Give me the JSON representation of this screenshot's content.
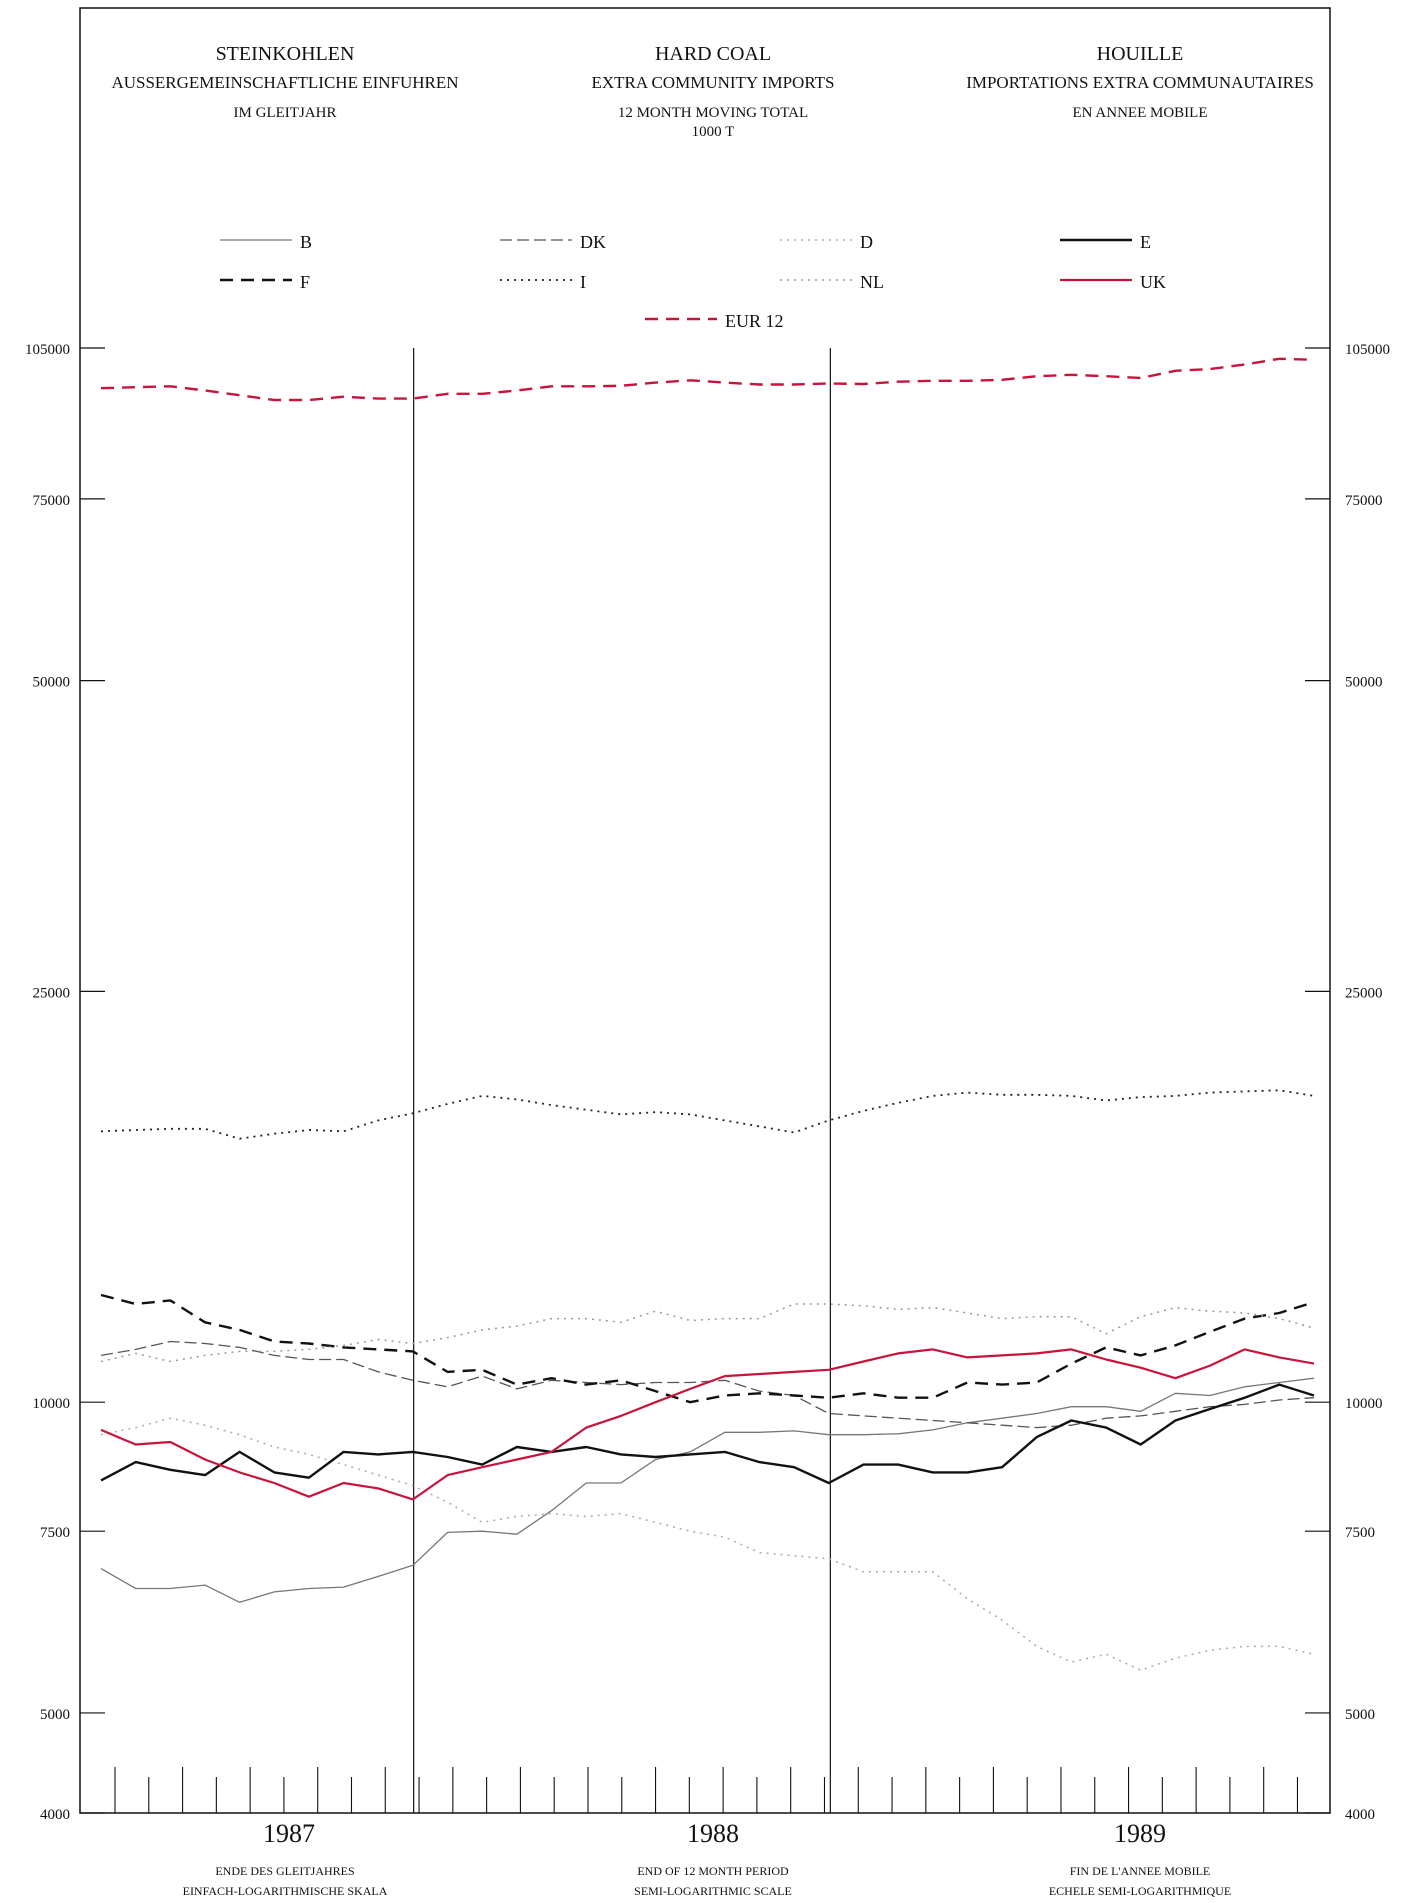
{
  "titles": [
    {
      "lines": [
        "STEINKOHLEN",
        "AUSSERGEMEINSCHAFTLICHE EINFUHREN",
        "IM GLEITJAHR"
      ]
    },
    {
      "lines": [
        "HARD COAL",
        "EXTRA COMMUNITY IMPORTS",
        "12 MONTH MOVING TOTAL",
        "1000 T"
      ]
    },
    {
      "lines": [
        "HOUILLE",
        "IMPORTATIONS EXTRA COMMUNAUTAIRES",
        "EN ANNEE MOBILE"
      ]
    }
  ],
  "footers": [
    {
      "lines": [
        "ENDE DES GLEITJAHRES",
        "EINFACH-LOGARITHMISCHE SKALA"
      ]
    },
    {
      "lines": [
        "END OF 12 MONTH PERIOD",
        "SEMI-LOGARITHMIC SCALE"
      ]
    },
    {
      "lines": [
        "FIN DE L'ANNEE MOBILE",
        "ECHELE SEMI-LOGARITHMIQUE"
      ]
    }
  ],
  "chart_data": {
    "type": "line",
    "y_scale": "log",
    "ylim": [
      4000,
      105000
    ],
    "y_ticks": [
      4000,
      5000,
      7500,
      10000,
      25000,
      50000,
      75000,
      105000
    ],
    "y_tick_labels": [
      "4000",
      "5000",
      "7500",
      "10000",
      "25000",
      "50000",
      "75000",
      "105000"
    ],
    "years": [
      "1987",
      "1988",
      "1989"
    ],
    "months_per_year": 12,
    "x_note": "monthly points, Jan 1987 to Dec 1989",
    "series": [
      {
        "name": "B",
        "color": "#777777",
        "dash": "solid",
        "width": 1.3,
        "values": [
          6900,
          6600,
          6600,
          6650,
          6400,
          6550,
          6600,
          6620,
          6780,
          6950,
          7480,
          7500,
          7450,
          7850,
          8350,
          8350,
          8800,
          8950,
          9350,
          9350,
          9380,
          9300,
          9300,
          9320,
          9400,
          9550,
          9650,
          9750,
          9900,
          9900,
          9800,
          10200,
          10150,
          10350,
          10450,
          10550
        ]
      },
      {
        "name": "DK",
        "color": "#555555",
        "dash": "long-dash",
        "width": 1.3,
        "values": [
          11100,
          11250,
          11450,
          11400,
          11300,
          11100,
          11000,
          11000,
          10700,
          10500,
          10350,
          10600,
          10300,
          10500,
          10450,
          10400,
          10450,
          10450,
          10500,
          10250,
          10150,
          9750,
          9700,
          9650,
          9600,
          9550,
          9500,
          9450,
          9500,
          9650,
          9700,
          9800,
          9900,
          9950,
          10050,
          10100
        ]
      },
      {
        "name": "D",
        "color": "#aaaaaa",
        "dash": "dot",
        "width": 1.5,
        "values": [
          9300,
          9450,
          9650,
          9500,
          9300,
          9050,
          8900,
          8700,
          8500,
          8300,
          8000,
          7650,
          7750,
          7800,
          7750,
          7800,
          7650,
          7500,
          7400,
          7150,
          7100,
          7050,
          6850,
          6850,
          6850,
          6450,
          6150,
          5800,
          5600,
          5700,
          5500,
          5650,
          5750,
          5800,
          5800,
          5700
        ]
      },
      {
        "name": "E",
        "color": "#111111",
        "dash": "solid",
        "width": 2.4,
        "values": [
          8400,
          8750,
          8600,
          8500,
          8950,
          8550,
          8450,
          8950,
          8900,
          8950,
          8850,
          8700,
          9050,
          8950,
          9050,
          8900,
          8850,
          8900,
          8950,
          8750,
          8650,
          8350,
          8700,
          8700,
          8550,
          8550,
          8650,
          9250,
          9600,
          9450,
          9100,
          9600,
          9850,
          10100,
          10400,
          10150
        ]
      },
      {
        "name": "F",
        "color": "#111111",
        "dash": "dash",
        "width": 2.4,
        "values": [
          12700,
          12450,
          12550,
          11950,
          11750,
          11450,
          11400,
          11300,
          11250,
          11200,
          10700,
          10750,
          10400,
          10550,
          10400,
          10500,
          10250,
          10000,
          10150,
          10200,
          10150,
          10100,
          10200,
          10100,
          10100,
          10450,
          10400,
          10450,
          10900,
          11300,
          11100,
          11350,
          11700,
          12050,
          12200,
          12500
        ]
      },
      {
        "name": "I",
        "color": "#222222",
        "dash": "dot",
        "width": 1.8,
        "values": [
          18300,
          18350,
          18400,
          18400,
          18000,
          18200,
          18350,
          18300,
          18750,
          19050,
          19450,
          19800,
          19650,
          19400,
          19200,
          19000,
          19100,
          19000,
          18750,
          18500,
          18250,
          18750,
          19150,
          19500,
          19800,
          19950,
          19850,
          19850,
          19800,
          19600,
          19750,
          19800,
          19950,
          20000,
          20050,
          19800
        ]
      },
      {
        "name": "NL",
        "color": "#999999",
        "dash": "dot",
        "width": 1.5,
        "values": [
          10950,
          11150,
          10950,
          11100,
          11200,
          11200,
          11250,
          11350,
          11500,
          11400,
          11550,
          11750,
          11850,
          12050,
          12050,
          11950,
          12250,
          12000,
          12050,
          12050,
          12450,
          12450,
          12400,
          12300,
          12350,
          12200,
          12050,
          12100,
          12100,
          11650,
          12100,
          12350,
          12250,
          12200,
          12050,
          11800
        ]
      },
      {
        "name": "UK",
        "color": "#c8143c",
        "dash": "solid",
        "width": 2.2,
        "values": [
          9400,
          9100,
          9150,
          8800,
          8550,
          8350,
          8100,
          8350,
          8250,
          8050,
          8500,
          8650,
          8800,
          8950,
          9450,
          9700,
          10000,
          10300,
          10600,
          10650,
          10700,
          10750,
          10950,
          11150,
          11250,
          11050,
          11100,
          11150,
          11250,
          11000,
          10800,
          10550,
          10850,
          11250,
          11050,
          10900
        ]
      },
      {
        "name": "EUR 12",
        "color": "#c8143c",
        "dash": "dash",
        "width": 2.4,
        "values": [
          96000,
          96200,
          96400,
          95500,
          94500,
          93500,
          93500,
          94200,
          93800,
          93800,
          94800,
          94800,
          95500,
          96400,
          96400,
          96500,
          97200,
          97700,
          97200,
          96800,
          96800,
          97000,
          96900,
          97400,
          97600,
          97600,
          97800,
          98600,
          98900,
          98600,
          98200,
          99800,
          100200,
          101200,
          102500,
          102300
        ]
      }
    ]
  },
  "colors": {
    "accent_red": "#c8143c",
    "axis": "#111111"
  }
}
